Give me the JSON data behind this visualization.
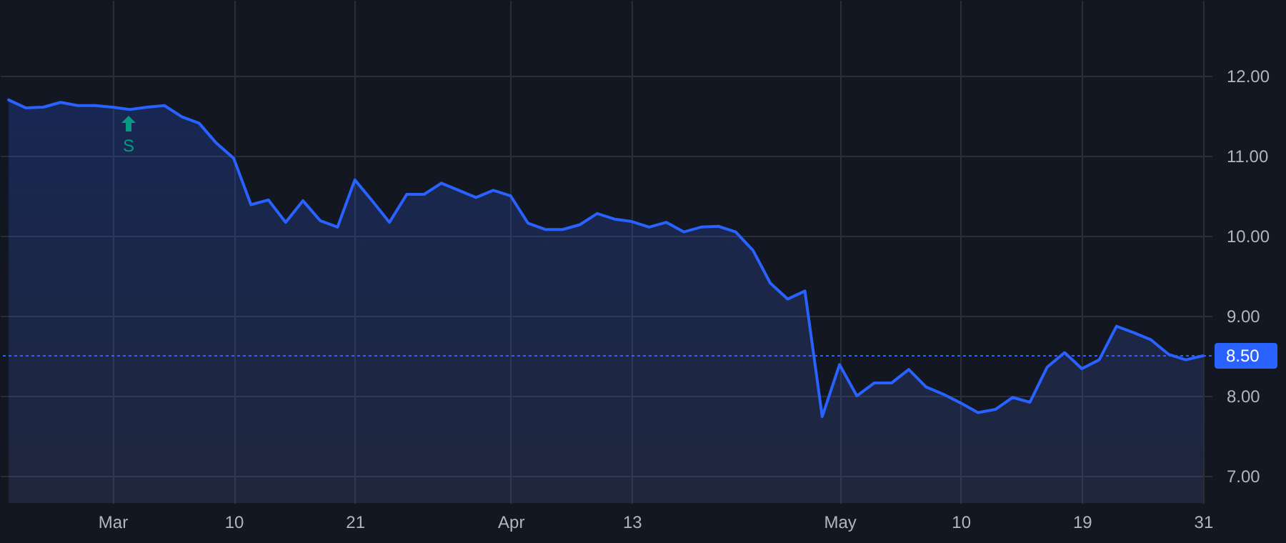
{
  "chart_data": {
    "type": "area",
    "categories": [
      null,
      null,
      null,
      null,
      null,
      null,
      "Mar",
      null,
      null,
      null,
      null,
      null,
      null,
      "10",
      null,
      null,
      null,
      null,
      null,
      null,
      "21",
      null,
      null,
      null,
      null,
      null,
      null,
      null,
      null,
      "Apr",
      null,
      null,
      null,
      null,
      null,
      null,
      "13",
      null,
      null,
      null,
      null,
      null,
      null,
      null,
      null,
      null,
      null,
      null,
      "May",
      null,
      null,
      null,
      null,
      null,
      null,
      "10",
      null,
      null,
      null,
      null,
      null,
      null,
      "19",
      null,
      null,
      null,
      null,
      null,
      null,
      "31"
    ],
    "series": [
      {
        "color": "#2962ff",
        "values": [
          11.7,
          11.6,
          11.61,
          11.67,
          11.63,
          11.63,
          11.61,
          11.58,
          11.61,
          11.63,
          11.49,
          11.41,
          11.16,
          10.97,
          10.39,
          10.45,
          10.17,
          10.44,
          10.19,
          10.11,
          10.7,
          10.44,
          10.17,
          10.52,
          10.52,
          10.66,
          10.57,
          10.48,
          10.57,
          10.5,
          10.16,
          10.08,
          10.08,
          10.14,
          10.28,
          10.21,
          10.18,
          10.11,
          10.17,
          10.05,
          10.11,
          10.12,
          10.05,
          9.82,
          9.41,
          9.21,
          9.31,
          7.74,
          8.39,
          8.0,
          8.16,
          8.16,
          8.33,
          8.11,
          8.02,
          7.91,
          7.79,
          7.83,
          7.98,
          7.92,
          8.36,
          8.54,
          8.34,
          8.45,
          8.87,
          8.79,
          8.7,
          8.52,
          8.45,
          8.5
        ]
      }
    ],
    "ylim": [
      6.66,
      12.95
    ],
    "yticks": [
      {
        "value": 7,
        "label": "7.00"
      },
      {
        "value": 8,
        "label": "8.00"
      },
      {
        "value": 9,
        "label": "9.00"
      },
      {
        "value": 10,
        "label": "10.00"
      },
      {
        "value": 11,
        "label": "11.00"
      },
      {
        "value": 12,
        "label": "12.00"
      }
    ],
    "ref_lines": [
      {
        "axis": "y",
        "value": 8.5,
        "label": "8.50",
        "color": "#2962ff",
        "line_style": "dotted"
      }
    ],
    "annotations": [
      "S"
    ],
    "grid": true
  }
}
